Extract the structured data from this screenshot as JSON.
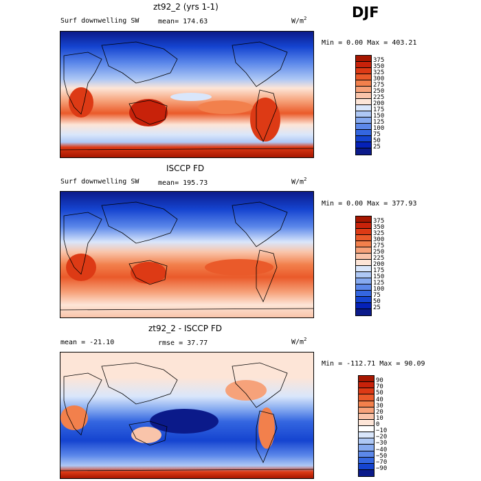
{
  "season": "DJF",
  "panels": [
    {
      "title": "zt92_2 (yrs 1-1)",
      "left_label": "Surf downwelling SW",
      "stat": "mean= 174.63",
      "units": "W/m",
      "units_sup": "2",
      "minmax": "Min =    0.00 Max = 403.21",
      "colorbar_levels": [
        "375",
        "350",
        "325",
        "300",
        "275",
        "250",
        "225",
        "200",
        "175",
        "150",
        "125",
        "100",
        "75",
        "50",
        "25"
      ],
      "colorbar_colors": [
        "#a61600",
        "#c8220a",
        "#dd3a15",
        "#ea5a2a",
        "#f2804c",
        "#f6a27a",
        "#f9c4aa",
        "#fde5d7",
        "#d9e6fb",
        "#aec8f5",
        "#86aaf0",
        "#5c88ea",
        "#3466e0",
        "#1544d0",
        "#0521b8",
        "#0b1a8a"
      ]
    },
    {
      "title": "ISCCP FD",
      "left_label": "Surf downwelling SW",
      "stat": "mean= 195.73",
      "units": "W/m",
      "units_sup": "2",
      "minmax": "Min =    0.00 Max = 377.93",
      "colorbar_levels": [
        "375",
        "350",
        "325",
        "300",
        "275",
        "250",
        "225",
        "200",
        "175",
        "150",
        "125",
        "100",
        "75",
        "50",
        "25"
      ],
      "colorbar_colors": [
        "#a61600",
        "#c8220a",
        "#dd3a15",
        "#ea5a2a",
        "#f2804c",
        "#f6a27a",
        "#f9c4aa",
        "#fde5d7",
        "#d9e6fb",
        "#aec8f5",
        "#86aaf0",
        "#5c88ea",
        "#3466e0",
        "#1544d0",
        "#0521b8",
        "#0b1a8a"
      ]
    },
    {
      "title": "zt92_2 - ISCCP FD",
      "left_label": "mean = -21.10",
      "stat": "rmse =  37.77",
      "units": "W/m",
      "units_sup": "2",
      "minmax": "Min = -112.71 Max =  90.09",
      "colorbar_levels": [
        "90",
        "70",
        "50",
        "40",
        "30",
        "20",
        "10",
        "0",
        "−10",
        "−20",
        "−30",
        "−40",
        "−50",
        "−70",
        "−90"
      ],
      "colorbar_colors": [
        "#a61600",
        "#c8220a",
        "#dd3a15",
        "#ea5a2a",
        "#f2804c",
        "#f6a27a",
        "#f9c4aa",
        "#fde5d7",
        "#ffffff",
        "#d9e6fb",
        "#aec8f5",
        "#86aaf0",
        "#5c88ea",
        "#3466e0",
        "#1544d0",
        "#0b1a8a"
      ]
    }
  ]
}
